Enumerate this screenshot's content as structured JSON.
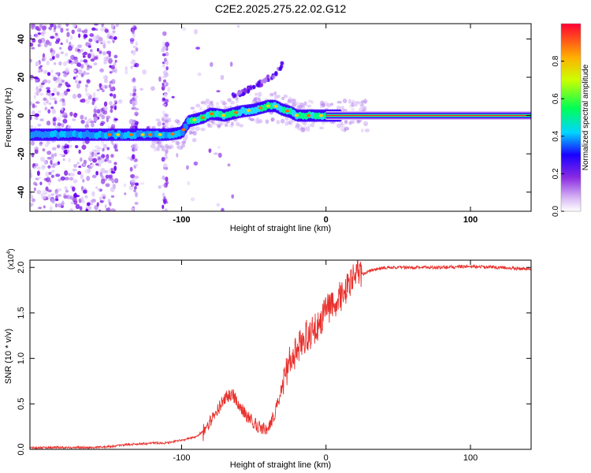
{
  "figure_title": "C2E2.2025.275.22.02.G12",
  "colors": {
    "snr_line": "#e8302c",
    "axis": "#000000"
  },
  "chart_data": [
    {
      "type": "heatmap",
      "name": "spectrogram",
      "title": "C2E2.2025.275.22.02.G12",
      "xlabel": "Height of straight line (km)",
      "ylabel": "Frequency (Hz)",
      "xlim": [
        -205,
        142
      ],
      "ylim": [
        -50,
        48
      ],
      "xticks": [
        -100,
        0,
        100
      ],
      "xtick_labels": [
        "-100",
        "0",
        "100"
      ],
      "yticks": [
        -40,
        -20,
        0,
        20,
        40
      ],
      "ytick_labels": [
        "-40",
        "-20",
        "0",
        "20",
        "40"
      ],
      "colorbar": {
        "label": "Normalized spectral amplitude",
        "range": [
          0,
          1
        ],
        "ticks": [
          0.0,
          0.2,
          0.4,
          0.6,
          0.8
        ],
        "tick_labels": [
          "0.0",
          "0.2",
          "0.4",
          "0.6",
          "0.8"
        ]
      },
      "ridge": {
        "x": [
          -205,
          -180,
          -160,
          -150,
          -140,
          -130,
          -120,
          -110,
          -100,
          -95,
          -90,
          -85,
          -80,
          -70,
          -60,
          -50,
          -40,
          -35,
          -30,
          -25,
          -20,
          -10,
          0,
          10,
          50,
          100,
          142
        ],
        "y": [
          -10,
          -10,
          -10,
          -10,
          -10,
          -10,
          -10,
          -10,
          -9,
          -3,
          -2,
          -1,
          1,
          0,
          2,
          3,
          5,
          5,
          3,
          2,
          0,
          0,
          0,
          0,
          0,
          0,
          0
        ]
      },
      "branch": {
        "x": [
          -65,
          -55,
          -45,
          -35,
          -30
        ],
        "y": [
          10,
          13,
          17,
          22,
          27
        ]
      }
    },
    {
      "type": "line",
      "name": "snr",
      "xlabel": "Height of straight line (km)",
      "ylabel": "SNR (10 * v/v)",
      "y_multiplier": "(x10",
      "y_multiplier_exp": "4",
      "xlim": [
        -205,
        142
      ],
      "ylim": [
        0,
        2.08
      ],
      "xticks": [
        -100,
        0,
        100
      ],
      "xtick_labels": [
        "-100",
        "0",
        "100"
      ],
      "yticks": [
        0.0,
        0.5,
        1.0,
        1.5,
        2.0
      ],
      "ytick_labels": [
        "0.0",
        "0.5",
        "1.0",
        "1.5",
        "2.0"
      ],
      "series": [
        {
          "name": "SNR",
          "x": [
            -205,
            -180,
            -160,
            -150,
            -140,
            -130,
            -120,
            -110,
            -100,
            -90,
            -85,
            -80,
            -75,
            -70,
            -65,
            -60,
            -55,
            -50,
            -45,
            -40,
            -35,
            -30,
            -25,
            -20,
            -15,
            -10,
            -5,
            0,
            5,
            10,
            15,
            20,
            25,
            30,
            35,
            40,
            50,
            60,
            80,
            100,
            120,
            142
          ],
          "values": [
            0.02,
            0.02,
            0.02,
            0.03,
            0.05,
            0.06,
            0.07,
            0.07,
            0.1,
            0.14,
            0.2,
            0.3,
            0.42,
            0.55,
            0.6,
            0.48,
            0.35,
            0.28,
            0.22,
            0.22,
            0.4,
            0.7,
            0.95,
            1.05,
            1.2,
            1.25,
            1.35,
            1.5,
            1.58,
            1.65,
            1.75,
            1.85,
            1.92,
            1.96,
            1.98,
            2.0,
            2.0,
            2.0,
            2.0,
            2.01,
            2.0,
            1.98
          ]
        }
      ]
    }
  ]
}
